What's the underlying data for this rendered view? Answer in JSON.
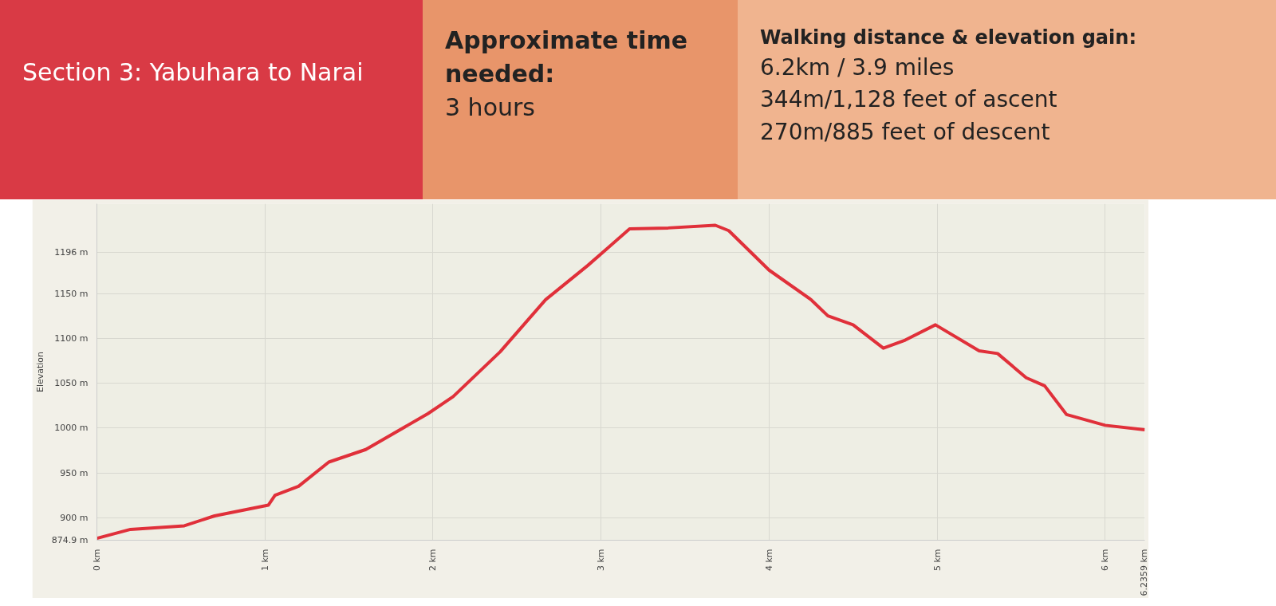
{
  "chart_data": {
    "type": "line",
    "title": "Section 3: Yabuhara to Narai",
    "annotations": [
      "Approximate time needed:",
      "3 hours",
      "Walking distance & elevation gain:",
      "6.2km / 3.9 miles",
      "344m/1,128 feet of ascent",
      "270m/885 feet of descent"
    ],
    "ylabel": "Elevation",
    "x": [
      0,
      0.2,
      0.52,
      0.7,
      1.02,
      1.06,
      1.2,
      1.38,
      1.6,
      1.97,
      2.12,
      2.4,
      2.67,
      2.92,
      3.17,
      3.4,
      3.68,
      3.76,
      4.0,
      4.25,
      4.35,
      4.5,
      4.68,
      4.81,
      4.99,
      5.25,
      5.36,
      5.53,
      5.64,
      5.77,
      6.0,
      6.2359
    ],
    "series": [
      {
        "color": "#e0303a",
        "values": [
          877,
          887,
          891,
          902,
          914,
          925,
          935,
          962,
          976,
          1016,
          1035,
          1085,
          1143,
          1181,
          1222,
          1223,
          1226,
          1220,
          1176,
          1143,
          1125,
          1115,
          1089,
          1098,
          1115,
          1086,
          1083,
          1056,
          1047,
          1015,
          1003,
          998
        ]
      }
    ],
    "xlim": [
      0,
      6.2359
    ],
    "ylim": [
      874.9,
      1250
    ],
    "xticks": [
      {
        "value": 0,
        "label": "0 km"
      },
      {
        "value": 1,
        "label": "1 km"
      },
      {
        "value": 2,
        "label": "2 km"
      },
      {
        "value": 3,
        "label": "3 km"
      },
      {
        "value": 4,
        "label": "4 km"
      },
      {
        "value": 5,
        "label": "5 km"
      },
      {
        "value": 6,
        "label": "6 km"
      },
      {
        "value": 6.2359,
        "label": "6.2359 km"
      }
    ],
    "yticks": [
      {
        "value": 874.9,
        "label": "874.9 m"
      },
      {
        "value": 900,
        "label": "900 m"
      },
      {
        "value": 950,
        "label": "950 m"
      },
      {
        "value": 1000,
        "label": "1000 m"
      },
      {
        "value": 1050,
        "label": "1050 m"
      },
      {
        "value": 1100,
        "label": "1100 m"
      },
      {
        "value": 1150,
        "label": "1150 m"
      },
      {
        "value": 1196,
        "label": "1196 m"
      }
    ],
    "grid": true,
    "line_style": "solid"
  }
}
